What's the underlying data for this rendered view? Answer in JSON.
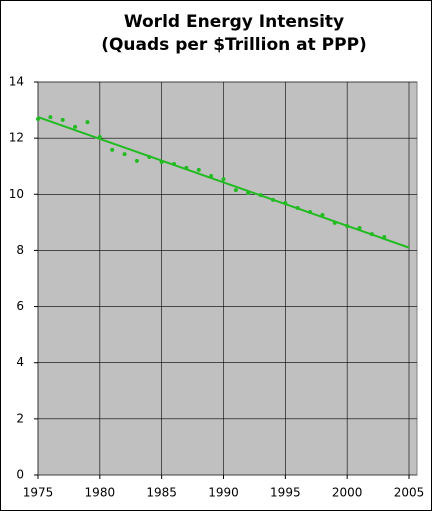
{
  "chart_data": {
    "type": "scatter",
    "title": [
      "World Energy Intensity",
      "(Quads per $Trillion at PPP)"
    ],
    "x": [
      1975,
      1976,
      1977,
      1978,
      1979,
      1980,
      1981,
      1982,
      1983,
      1984,
      1985,
      1986,
      1987,
      1988,
      1989,
      1990,
      1991,
      1992,
      1993,
      1994,
      1995,
      1996,
      1997,
      1998,
      1999,
      2000,
      2001,
      2002,
      2003
    ],
    "series": [
      {
        "color": "#22bb22",
        "values": [
          12.68,
          12.75,
          12.65,
          12.4,
          12.57,
          12.04,
          11.58,
          11.43,
          11.19,
          11.33,
          11.15,
          11.08,
          10.94,
          10.87,
          10.65,
          10.54,
          10.15,
          10.05,
          9.97,
          9.8,
          9.69,
          9.51,
          9.37,
          9.26,
          8.98,
          8.87,
          8.8,
          8.58,
          8.48
        ]
      }
    ],
    "trendline": {
      "color": "#22bb22",
      "x": [
        1975,
        2005
      ],
      "values": [
        12.75,
        8.1
      ]
    },
    "xlim": [
      1975,
      2005
    ],
    "xticks": [
      1975,
      1980,
      1985,
      1990,
      1995,
      2000,
      2005
    ],
    "ylim": [
      0,
      14
    ],
    "yticks": [
      0,
      2,
      4,
      6,
      8,
      10,
      12,
      14
    ],
    "grid": true,
    "plot_background": "#c0c0c0"
  }
}
